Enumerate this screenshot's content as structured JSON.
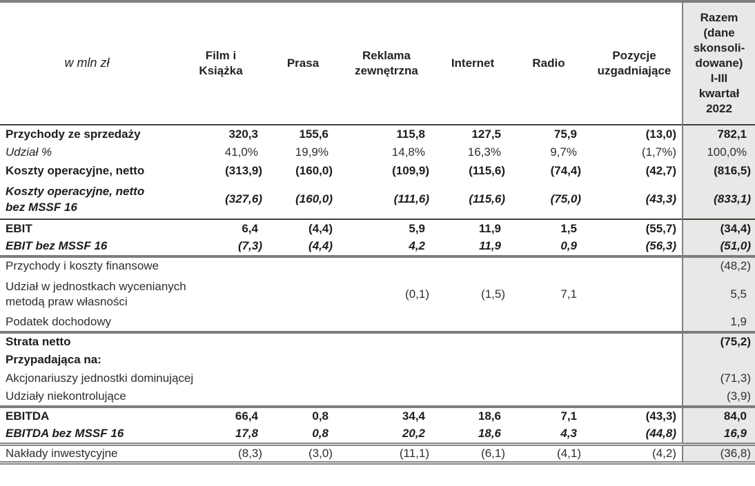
{
  "colors": {
    "total_column_bg": "#e8e8e6",
    "rule_gray": "#7d7d7d",
    "rule_black": "#3e3e3e",
    "text": "#232323"
  },
  "table": {
    "columns": [
      {
        "key": "label",
        "label": "w mln zł"
      },
      {
        "key": "film-i-ksiazka",
        "label": "Film i\nKsiążka"
      },
      {
        "key": "prasa",
        "label": "Prasa"
      },
      {
        "key": "reklama-zewnetrzna",
        "label": "Reklama\nzewnętrzna"
      },
      {
        "key": "internet",
        "label": "Internet"
      },
      {
        "key": "radio",
        "label": "Radio"
      },
      {
        "key": "pozycje-uzgadniajace",
        "label": "Pozycje\nuzgadniające"
      },
      {
        "key": "razem",
        "label": "Razem\n(dane\nskonsoli-\ndowane)\nI-III\nkwartał\n2022"
      }
    ],
    "rows": [
      {
        "label": "Przychody ze sprzedaży",
        "style": "bold",
        "rule": "none",
        "values": [
          "320,3",
          "155,6",
          "115,8",
          "127,5",
          "75,9",
          "(13,0)",
          "782,1"
        ]
      },
      {
        "label": "Udział %",
        "style": "udzial",
        "rule": "none",
        "values": [
          "41,0%",
          "19,9%",
          "14,8%",
          "16,3%",
          "9,7%",
          "(1,7%)",
          "100,0%"
        ]
      },
      {
        "label": "Koszty operacyjne, netto",
        "style": "bold",
        "rule": "none",
        "values": [
          "(313,9)",
          "(160,0)",
          "(109,9)",
          "(115,6)",
          "(74,4)",
          "(42,7)",
          "(816,5)"
        ]
      },
      {
        "label": "Koszty operacyjne, netto\nbez MSSF 16",
        "style": "bolditalic",
        "rule": "black",
        "values": [
          "(327,6)",
          "(160,0)",
          "(111,6)",
          "(115,6)",
          "(75,0)",
          "(43,3)",
          "(833,1)"
        ]
      },
      {
        "label": "EBIT",
        "style": "bold",
        "rule": "none",
        "values": [
          "6,4",
          "(4,4)",
          "5,9",
          "11,9",
          "1,5",
          "(55,7)",
          "(34,4)"
        ]
      },
      {
        "label": "EBIT bez MSSF 16",
        "style": "bolditalic",
        "rule": "gray",
        "values": [
          "(7,3)",
          "(4,4)",
          "4,2",
          "11,9",
          "0,9",
          "(56,3)",
          "(51,0)"
        ]
      },
      {
        "label": "Przychody i koszty finansowe",
        "style": "regular",
        "rule": "none",
        "values": [
          "",
          "",
          "",
          "",
          "",
          "",
          "(48,2)"
        ]
      },
      {
        "label": "Udział w jednostkach wycenianych\nmetodą praw własności",
        "style": "regular",
        "rule": "none",
        "values": [
          "",
          "",
          "(0,1)",
          "(1,5)",
          "7,1",
          "",
          "5,5"
        ]
      },
      {
        "label": "Podatek dochodowy",
        "style": "regular",
        "rule": "gray",
        "values": [
          "",
          "",
          "",
          "",
          "",
          "",
          "1,9"
        ]
      },
      {
        "label": "Strata netto",
        "style": "bold",
        "rule": "none",
        "values": [
          "",
          "",
          "",
          "",
          "",
          "",
          "(75,2)"
        ]
      },
      {
        "label": "Przypadająca na:",
        "style": "bold",
        "rule": "none",
        "values": [
          "",
          "",
          "",
          "",
          "",
          "",
          ""
        ]
      },
      {
        "label": "Akcjonariuszy jednostki dominującej",
        "style": "regular",
        "rule": "none",
        "values": [
          "",
          "",
          "",
          "",
          "",
          "",
          "(71,3)"
        ]
      },
      {
        "label": "Udziały niekontrolujące",
        "style": "regular",
        "rule": "gray",
        "values": [
          "",
          "",
          "",
          "",
          "",
          "",
          "(3,9)"
        ]
      },
      {
        "label": "EBITDA",
        "style": "bold",
        "rule": "none",
        "values": [
          "66,4",
          "0,8",
          "34,4",
          "18,6",
          "7,1",
          "(43,3)",
          "84,0"
        ]
      },
      {
        "label": "EBITDA bez MSSF 16",
        "style": "bolditalic",
        "rule": "double",
        "values": [
          "17,8",
          "0,8",
          "20,2",
          "18,6",
          "4,3",
          "(44,8)",
          "16,9"
        ]
      },
      {
        "label": "Nakłady inwestycyjne",
        "style": "regular",
        "rule": "double",
        "values": [
          "(8,3)",
          "(3,0)",
          "(11,1)",
          "(6,1)",
          "(4,1)",
          "(4,2)",
          "(36,8)"
        ]
      }
    ]
  }
}
